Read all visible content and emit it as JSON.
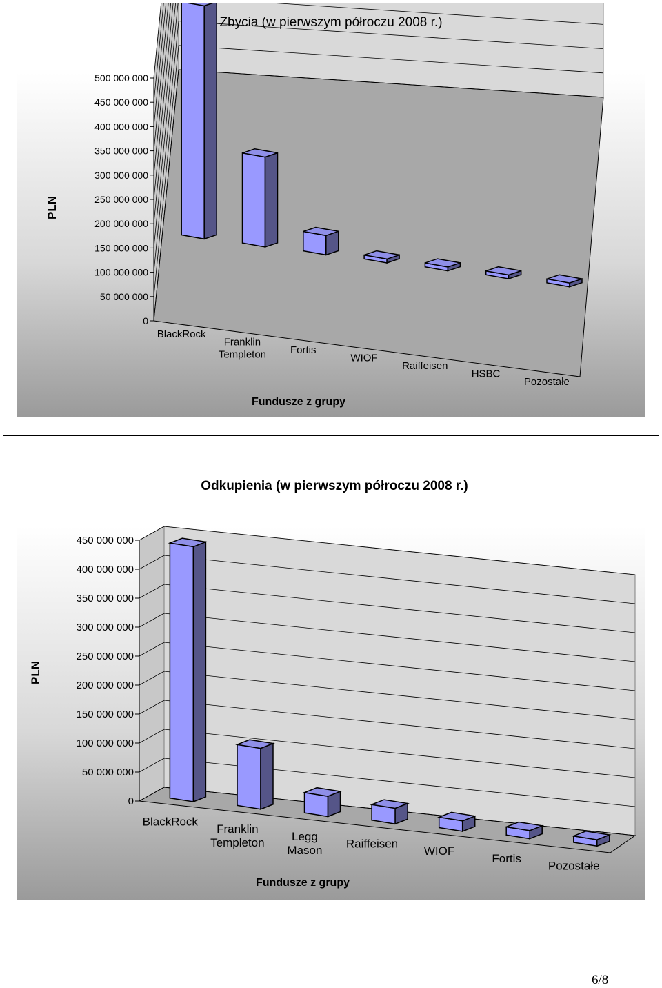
{
  "chart_data": [
    {
      "type": "bar",
      "title": "Zbycia (w pierwszym półroczu 2008 r.)",
      "xlabel": "Fundusze z grupy",
      "ylabel": "PLN",
      "categories": [
        "BlackRock",
        "Franklin Templeton",
        "Fortis",
        "WIOF",
        "Raiffeisen",
        "HSBC",
        "Pozostałe"
      ],
      "category_lines": [
        [
          "BlackRock"
        ],
        [
          "Franklin",
          "Templeton"
        ],
        [
          "Fortis"
        ],
        [
          "WIOF"
        ],
        [
          "Raiffeisen"
        ],
        [
          "HSBC"
        ],
        [
          "Pozostałe"
        ]
      ],
      "values": [
        480000000,
        185000000,
        40000000,
        8000000,
        8000000,
        8000000,
        8000000
      ],
      "ylim": [
        0,
        500000000
      ],
      "yticks": [
        "0",
        "50 000 000",
        "100 000 000",
        "150 000 000",
        "200 000 000",
        "250 000 000",
        "300 000 000",
        "350 000 000",
        "400 000 000",
        "450 000 000",
        "500 000 000"
      ],
      "grid": true,
      "colors": {
        "bar_front": "#9999ff",
        "bar_side": "#555588",
        "bar_top": "#8f8fe8",
        "wall": "#d9d9d9",
        "floor": "#a8a8a8"
      }
    },
    {
      "type": "bar",
      "title": "Odkupienia (w pierwszym półroczu 2008 r.)",
      "xlabel": "Fundusze z grupy",
      "ylabel": "PLN",
      "categories": [
        "BlackRock",
        "Franklin Templeton",
        "Legg Mason",
        "Raiffeisen",
        "WIOF",
        "Fortis",
        "Pozostałe"
      ],
      "category_lines": [
        [
          "BlackRock"
        ],
        [
          "Franklin",
          "Templeton"
        ],
        [
          "Legg",
          "Mason"
        ],
        [
          "Raiffeisen"
        ],
        [
          "WIOF"
        ],
        [
          "Fortis"
        ],
        [
          "Pozostałe"
        ]
      ],
      "values": [
        440000000,
        105000000,
        35000000,
        27000000,
        18000000,
        14000000,
        11000000
      ],
      "ylim": [
        0,
        450000000
      ],
      "yticks": [
        "0",
        "50 000 000",
        "100 000 000",
        "150 000 000",
        "200 000 000",
        "250 000 000",
        "300 000 000",
        "350 000 000",
        "400 000 000",
        "450 000 000"
      ],
      "grid": true,
      "colors": {
        "bar_front": "#9999ff",
        "bar_side": "#555588",
        "bar_top": "#8f8fe8",
        "wall": "#d9d9d9",
        "floor": "#a8a8a8"
      }
    }
  ],
  "page": {
    "number": "6/8"
  }
}
